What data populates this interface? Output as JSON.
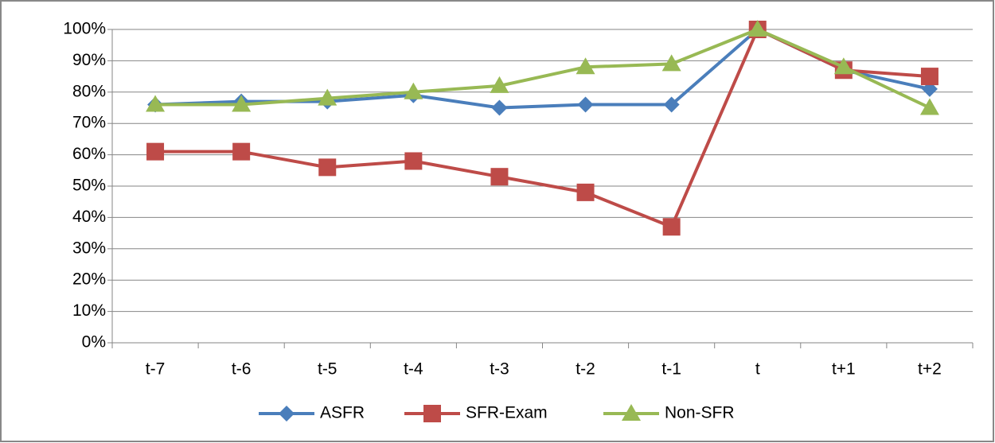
{
  "chart_data": {
    "type": "line",
    "categories": [
      "t-7",
      "t-6",
      "t-5",
      "t-4",
      "t-3",
      "t-2",
      "t-1",
      "t",
      "t+1",
      "t+2"
    ],
    "series": [
      {
        "name": "ASFR",
        "color": "#4a7ebb",
        "marker": "diamond",
        "values": [
          76,
          77,
          77,
          79,
          75,
          76,
          76,
          100,
          87,
          81
        ]
      },
      {
        "name": "SFR-Exam",
        "color": "#be4b48",
        "marker": "square",
        "values": [
          61,
          61,
          56,
          58,
          53,
          48,
          37,
          100,
          87,
          85
        ]
      },
      {
        "name": "Non-SFR",
        "color": "#98b954",
        "marker": "triangle",
        "values": [
          76,
          76,
          78,
          80,
          82,
          88,
          89,
          100,
          88,
          75
        ]
      }
    ],
    "ylim": [
      0,
      100
    ],
    "yticks": [
      {
        "value": 0,
        "label": "0%"
      },
      {
        "value": 10,
        "label": "10%"
      },
      {
        "value": 20,
        "label": "20%"
      },
      {
        "value": 30,
        "label": "30%"
      },
      {
        "value": 40,
        "label": "40%"
      },
      {
        "value": 50,
        "label": "50%"
      },
      {
        "value": 60,
        "label": "60%"
      },
      {
        "value": 70,
        "label": "70%"
      },
      {
        "value": 80,
        "label": "80%"
      },
      {
        "value": 90,
        "label": "90%"
      },
      {
        "value": 100,
        "label": "100%"
      }
    ],
    "grid": true,
    "legend": "bottom"
  }
}
